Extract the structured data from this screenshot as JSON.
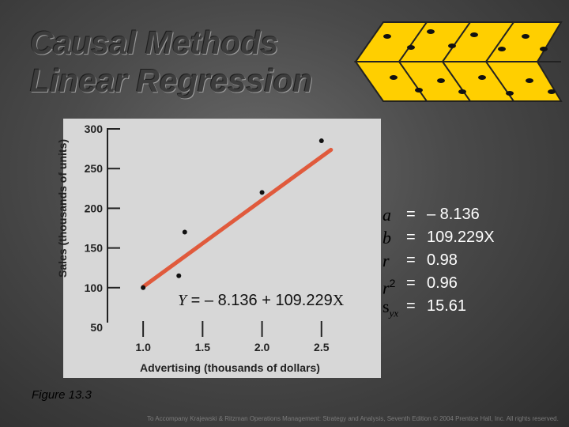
{
  "title": {
    "line1": "Causal Methods",
    "line2": "Linear Regression"
  },
  "chart_data": {
    "type": "scatter",
    "xlabel": "Advertising (thousands of dollars)",
    "ylabel": "Sales (thousands of units)",
    "xlim": [
      0.7,
      3.0
    ],
    "ylim": [
      50,
      300
    ],
    "x_ticks": [
      "1.0",
      "1.5",
      "2.0",
      "2.5"
    ],
    "y_ticks": [
      "300",
      "250",
      "200",
      "150",
      "100",
      "50"
    ],
    "points": [
      {
        "x": 1.0,
        "y": 100
      },
      {
        "x": 1.3,
        "y": 115
      },
      {
        "x": 1.35,
        "y": 170
      },
      {
        "x": 2.0,
        "y": 220
      },
      {
        "x": 2.5,
        "y": 285
      }
    ],
    "regression": {
      "intercept": -8.136,
      "slope": 109.229
    },
    "equation": {
      "lhs": "Y",
      "rhs": " = – 8.136 + 109.229",
      "var": "X"
    },
    "line_color": "#e05a3c",
    "grid": false
  },
  "stats": [
    {
      "symbol": "a",
      "eq": "=",
      "value": "– 8.136"
    },
    {
      "symbol": "b",
      "eq": "=",
      "value": "109.229X"
    },
    {
      "symbol": "r",
      "eq": "=",
      "value": "0.98"
    },
    {
      "symbol": "r",
      "sup": "2",
      "eq": "=",
      "value": "0.96"
    },
    {
      "symbol": "s",
      "sub": "yx",
      "eq": "=",
      "value": "15.61"
    }
  ],
  "figure_label": "Figure 13.3",
  "copyright": "To Accompany Krajewski & Ritzman Operations Management: Strategy and Analysis, Seventh Edition © 2004 Prentice Hall, Inc. All rights reserved.",
  "logo_icon": "dice-logo-icon"
}
